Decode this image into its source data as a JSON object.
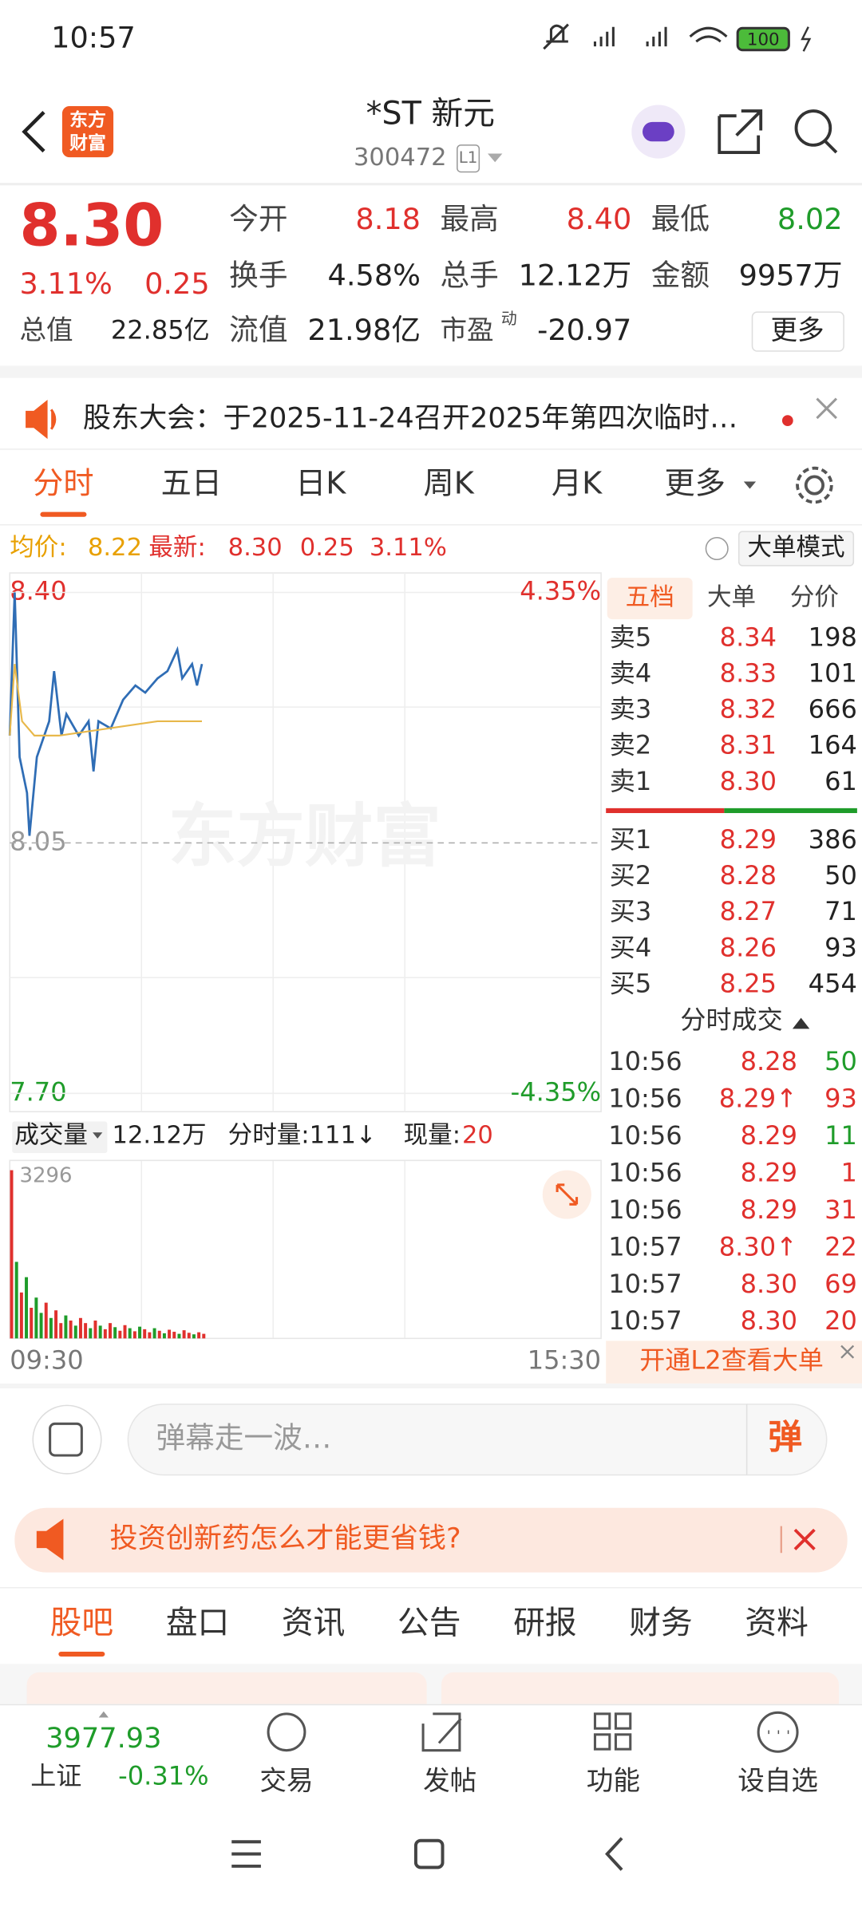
{
  "status_bar": {
    "time": "10:57",
    "battery": "100"
  },
  "header": {
    "logo": [
      "东方",
      "财富"
    ],
    "title": "*ST 新元",
    "code": "300472",
    "level": "L1"
  },
  "quote": {
    "price": "8.30",
    "change_pct": "3.11%",
    "change": "0.25",
    "fields": [
      {
        "label": "今开",
        "value": "8.18",
        "color": "#e0302d"
      },
      {
        "label": "最高",
        "value": "8.40",
        "color": "#e0302d"
      },
      {
        "label": "最低",
        "value": "8.02",
        "color": "#1f9c2a"
      },
      {
        "label": "换手",
        "value": "4.58%",
        "color": "#222222"
      },
      {
        "label": "总手",
        "value": "12.12万",
        "color": "#222222"
      },
      {
        "label": "金额",
        "value": "9957万",
        "color": "#222222"
      },
      {
        "label": "总值",
        "value": "22.85亿",
        "color": "#222222"
      },
      {
        "label": "流值",
        "value": "21.98亿",
        "color": "#222222"
      },
      {
        "label": "市盈",
        "value": "-20.97",
        "color": "#222222"
      }
    ],
    "pe_mark": "动",
    "more": "更多"
  },
  "notice": "股东大会：于2025-11-24召开2025年第四次临时…",
  "chart_tabs": [
    "分时",
    "五日",
    "日K",
    "周K",
    "月K",
    "更多"
  ],
  "info": {
    "avg_label": "均价:",
    "avg": "8.22",
    "last_label": "最新:",
    "last": "8.30",
    "change": "0.25",
    "change_pct": "3.11%",
    "mode": "大单模式"
  },
  "chart_data": [
    {
      "type": "line",
      "watermark": "东方财富",
      "xlim": [
        0,
        240
      ],
      "ylim": [
        7.7,
        8.4
      ],
      "yticks": [
        {
          "value": 8.4,
          "label": "8.40"
        },
        {
          "value": 8.05,
          "label": "8.05"
        },
        {
          "value": 7.7,
          "label": "7.70"
        }
      ],
      "y2lim": [
        -4.35,
        4.35
      ],
      "y2ticks": [
        {
          "value": 4.35,
          "label": "4.35%"
        },
        {
          "value": -4.35,
          "label": "-4.35%"
        }
      ],
      "xticks": [
        {
          "value": 0,
          "label": "09:30"
        },
        {
          "value": 240,
          "label": "15:30"
        }
      ],
      "series": [
        {
          "color": "#2f6db5",
          "x": [
            0,
            2,
            4,
            7,
            8,
            11,
            16,
            18,
            21,
            23,
            28,
            32,
            34,
            36,
            41,
            46,
            51,
            55,
            60,
            64,
            68,
            70,
            74,
            76,
            78
          ],
          "values": [
            8.2,
            8.4,
            8.17,
            8.12,
            8.06,
            8.17,
            8.22,
            8.29,
            8.2,
            8.23,
            8.2,
            8.22,
            8.15,
            8.22,
            8.21,
            8.25,
            8.27,
            8.26,
            8.28,
            8.29,
            8.32,
            8.28,
            8.3,
            8.27,
            8.3
          ]
        },
        {
          "color": "#e8b84a",
          "x": [
            0,
            2,
            5,
            10,
            20,
            40,
            60,
            78
          ],
          "values": [
            8.2,
            8.3,
            8.22,
            8.2,
            8.2,
            8.21,
            8.22,
            8.22
          ]
        }
      ]
    },
    {
      "type": "bar",
      "label": "成交量",
      "total": "12.12万",
      "minute_vol": "分时量:111↓",
      "current_label": "现量:",
      "current": "20",
      "xlim": [
        0,
        240
      ],
      "ylim": [
        0,
        3296
      ],
      "yticks": [
        3296
      ],
      "x": [
        0,
        2,
        4,
        6,
        8,
        10,
        12,
        14,
        16,
        18,
        20,
        22,
        24,
        26,
        28,
        30,
        32,
        34,
        36,
        38,
        40,
        42,
        44,
        46,
        48,
        50,
        52,
        54,
        56,
        58,
        60,
        62,
        64,
        66,
        68,
        70,
        72,
        74,
        76,
        78
      ],
      "values": [
        3296,
        1500,
        900,
        1200,
        600,
        800,
        500,
        700,
        400,
        550,
        300,
        450,
        350,
        250,
        400,
        300,
        200,
        350,
        250,
        180,
        300,
        220,
        150,
        260,
        200,
        140,
        230,
        180,
        120,
        200,
        150,
        100,
        170,
        130,
        90,
        160,
        110,
        80,
        120,
        90
      ],
      "colors": [
        "#e0302d",
        "#1f9c2a",
        "#e0302d",
        "#1f9c2a",
        "#e0302d",
        "#1f9c2a",
        "#1f9c2a",
        "#e0302d",
        "#1f9c2a",
        "#e0302d",
        "#e0302d",
        "#1f9c2a",
        "#e0302d",
        "#1f9c2a",
        "#e0302d",
        "#e0302d",
        "#1f9c2a",
        "#e0302d",
        "#1f9c2a",
        "#e0302d",
        "#e0302d",
        "#1f9c2a",
        "#e0302d",
        "#e0302d",
        "#1f9c2a",
        "#e0302d",
        "#1f9c2a",
        "#e0302d",
        "#e0302d",
        "#1f9c2a",
        "#e0302d",
        "#1f9c2a",
        "#e0302d",
        "#e0302d",
        "#1f9c2a",
        "#e0302d",
        "#e0302d",
        "#1f9c2a",
        "#e0302d",
        "#e0302d"
      ]
    }
  ],
  "order_book": {
    "tabs": [
      "五档",
      "大单",
      "分价"
    ],
    "asks": [
      {
        "label": "卖5",
        "price": "8.34",
        "vol": "198"
      },
      {
        "label": "卖4",
        "price": "8.33",
        "vol": "101"
      },
      {
        "label": "卖3",
        "price": "8.32",
        "vol": "666"
      },
      {
        "label": "卖2",
        "price": "8.31",
        "vol": "164"
      },
      {
        "label": "卖1",
        "price": "8.30",
        "vol": "61"
      }
    ],
    "bids": [
      {
        "label": "买1",
        "price": "8.29",
        "vol": "386"
      },
      {
        "label": "买2",
        "price": "8.28",
        "vol": "50"
      },
      {
        "label": "买3",
        "price": "8.27",
        "vol": "71"
      },
      {
        "label": "买4",
        "price": "8.26",
        "vol": "93"
      },
      {
        "label": "买5",
        "price": "8.25",
        "vol": "454"
      }
    ],
    "trades_title": "分时成交",
    "trades": [
      {
        "time": "10:56",
        "price": "8.28",
        "vol": "50",
        "color": "#1f9c2a"
      },
      {
        "time": "10:56",
        "price": "8.29↑",
        "vol": "93",
        "color": "#e0302d"
      },
      {
        "time": "10:56",
        "price": "8.29",
        "vol": "11",
        "color": "#1f9c2a"
      },
      {
        "time": "10:56",
        "price": "8.29",
        "vol": "1",
        "color": "#e0302d"
      },
      {
        "time": "10:56",
        "price": "8.29",
        "vol": "31",
        "color": "#e0302d"
      },
      {
        "time": "10:57",
        "price": "8.30↑",
        "vol": "22",
        "color": "#e0302d"
      },
      {
        "time": "10:57",
        "price": "8.30",
        "vol": "69",
        "color": "#e0302d"
      },
      {
        "time": "10:57",
        "price": "8.30",
        "vol": "20",
        "color": "#e0302d"
      }
    ],
    "l2": "开通L2查看大单"
  },
  "comment": {
    "placeholder": "弹幕走一波…",
    "button": "弹"
  },
  "ad": "投资创新药怎么才能更省钱?",
  "bottom_tabs": [
    "股吧",
    "盘口",
    "资讯",
    "公告",
    "研报",
    "财务",
    "资料"
  ],
  "nav": {
    "index_value": "3977.93",
    "index_name": "上证",
    "index_change": "-0.31%",
    "items": [
      "交易",
      "发帖",
      "功能",
      "设自选"
    ]
  }
}
